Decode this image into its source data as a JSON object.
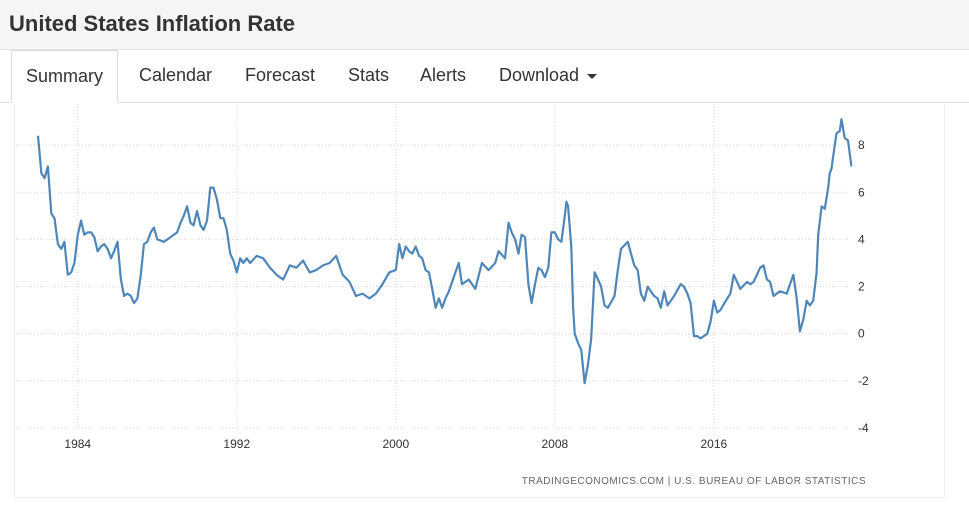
{
  "page_title": "United States Inflation Rate",
  "tabs": [
    {
      "label": "Summary",
      "active": true
    },
    {
      "label": "Calendar"
    },
    {
      "label": "Forecast"
    },
    {
      "label": "Stats"
    },
    {
      "label": "Alerts"
    },
    {
      "label": "Download"
    }
  ],
  "chart_data": {
    "type": "line",
    "title": "",
    "xlabel": "",
    "ylabel": "",
    "x_ticks": [
      "1984",
      "1992",
      "2000",
      "2008",
      "2016"
    ],
    "y_ticks": [
      "-4",
      "-2",
      "0",
      "2",
      "4",
      "6",
      "8"
    ],
    "xlim": [
      1982.0,
      2023.0
    ],
    "ylim": [
      -4,
      10
    ],
    "grid": true,
    "line_color": "#4f86b8",
    "source": "TRADINGECONOMICS.COM | U.S. BUREAU OF LABOR STATISTICS",
    "series": [
      {
        "name": "Inflation Rate",
        "points": [
          [
            1982.0,
            8.4
          ],
          [
            1982.17,
            6.8
          ],
          [
            1982.33,
            6.6
          ],
          [
            1982.5,
            7.1
          ],
          [
            1982.67,
            5.1
          ],
          [
            1982.83,
            4.9
          ],
          [
            1983.0,
            3.8
          ],
          [
            1983.17,
            3.6
          ],
          [
            1983.33,
            3.9
          ],
          [
            1983.5,
            2.5
          ],
          [
            1983.67,
            2.6
          ],
          [
            1983.83,
            3.0
          ],
          [
            1984.0,
            4.2
          ],
          [
            1984.17,
            4.8
          ],
          [
            1984.33,
            4.2
          ],
          [
            1984.5,
            4.3
          ],
          [
            1984.67,
            4.3
          ],
          [
            1984.83,
            4.1
          ],
          [
            1985.0,
            3.5
          ],
          [
            1985.17,
            3.7
          ],
          [
            1985.33,
            3.8
          ],
          [
            1985.5,
            3.6
          ],
          [
            1985.67,
            3.2
          ],
          [
            1985.83,
            3.5
          ],
          [
            1986.0,
            3.9
          ],
          [
            1986.17,
            2.3
          ],
          [
            1986.33,
            1.6
          ],
          [
            1986.5,
            1.7
          ],
          [
            1986.67,
            1.6
          ],
          [
            1986.83,
            1.3
          ],
          [
            1987.0,
            1.5
          ],
          [
            1987.17,
            2.5
          ],
          [
            1987.33,
            3.8
          ],
          [
            1987.5,
            3.9
          ],
          [
            1987.67,
            4.3
          ],
          [
            1987.83,
            4.5
          ],
          [
            1988.0,
            4.0
          ],
          [
            1988.33,
            3.9
          ],
          [
            1988.67,
            4.1
          ],
          [
            1989.0,
            4.3
          ],
          [
            1989.17,
            4.7
          ],
          [
            1989.33,
            5.0
          ],
          [
            1989.5,
            5.4
          ],
          [
            1989.67,
            4.7
          ],
          [
            1989.83,
            4.6
          ],
          [
            1990.0,
            5.2
          ],
          [
            1990.17,
            4.6
          ],
          [
            1990.33,
            4.4
          ],
          [
            1990.5,
            4.8
          ],
          [
            1990.67,
            6.2
          ],
          [
            1990.83,
            6.2
          ],
          [
            1991.0,
            5.7
          ],
          [
            1991.17,
            4.9
          ],
          [
            1991.33,
            4.9
          ],
          [
            1991.5,
            4.4
          ],
          [
            1991.67,
            3.4
          ],
          [
            1991.83,
            3.1
          ],
          [
            1992.0,
            2.6
          ],
          [
            1992.17,
            3.2
          ],
          [
            1992.33,
            3.0
          ],
          [
            1992.5,
            3.2
          ],
          [
            1992.67,
            3.0
          ],
          [
            1993.0,
            3.3
          ],
          [
            1993.33,
            3.2
          ],
          [
            1993.67,
            2.8
          ],
          [
            1994.0,
            2.5
          ],
          [
            1994.33,
            2.3
          ],
          [
            1994.67,
            2.9
          ],
          [
            1995.0,
            2.8
          ],
          [
            1995.33,
            3.1
          ],
          [
            1995.67,
            2.6
          ],
          [
            1996.0,
            2.7
          ],
          [
            1996.33,
            2.9
          ],
          [
            1996.67,
            3.0
          ],
          [
            1997.0,
            3.3
          ],
          [
            1997.33,
            2.5
          ],
          [
            1997.67,
            2.2
          ],
          [
            1998.0,
            1.6
          ],
          [
            1998.33,
            1.7
          ],
          [
            1998.67,
            1.5
          ],
          [
            1999.0,
            1.7
          ],
          [
            1999.33,
            2.1
          ],
          [
            1999.67,
            2.6
          ],
          [
            2000.0,
            2.7
          ],
          [
            2000.17,
            3.8
          ],
          [
            2000.33,
            3.2
          ],
          [
            2000.5,
            3.7
          ],
          [
            2000.67,
            3.5
          ],
          [
            2000.83,
            3.4
          ],
          [
            2001.0,
            3.7
          ],
          [
            2001.17,
            3.3
          ],
          [
            2001.33,
            3.2
          ],
          [
            2001.5,
            2.7
          ],
          [
            2001.67,
            2.6
          ],
          [
            2001.83,
            1.9
          ],
          [
            2002.0,
            1.1
          ],
          [
            2002.17,
            1.5
          ],
          [
            2002.33,
            1.1
          ],
          [
            2002.5,
            1.5
          ],
          [
            2002.67,
            1.8
          ],
          [
            2002.83,
            2.2
          ],
          [
            2003.0,
            2.6
          ],
          [
            2003.17,
            3.0
          ],
          [
            2003.33,
            2.1
          ],
          [
            2003.67,
            2.3
          ],
          [
            2004.0,
            1.9
          ],
          [
            2004.33,
            3.0
          ],
          [
            2004.67,
            2.7
          ],
          [
            2005.0,
            3.0
          ],
          [
            2005.17,
            3.5
          ],
          [
            2005.5,
            3.2
          ],
          [
            2005.67,
            4.7
          ],
          [
            2005.83,
            4.3
          ],
          [
            2006.0,
            4.0
          ],
          [
            2006.17,
            3.4
          ],
          [
            2006.33,
            4.2
          ],
          [
            2006.5,
            4.1
          ],
          [
            2006.67,
            2.1
          ],
          [
            2006.83,
            1.3
          ],
          [
            2007.0,
            2.1
          ],
          [
            2007.17,
            2.8
          ],
          [
            2007.33,
            2.7
          ],
          [
            2007.5,
            2.4
          ],
          [
            2007.67,
            2.8
          ],
          [
            2007.83,
            4.3
          ],
          [
            2008.0,
            4.3
          ],
          [
            2008.17,
            4.0
          ],
          [
            2008.33,
            3.9
          ],
          [
            2008.5,
            5.0
          ],
          [
            2008.58,
            5.6
          ],
          [
            2008.67,
            5.4
          ],
          [
            2008.83,
            3.7
          ],
          [
            2008.92,
            1.1
          ],
          [
            2009.0,
            0.0
          ],
          [
            2009.17,
            -0.4
          ],
          [
            2009.33,
            -0.7
          ],
          [
            2009.5,
            -2.1
          ],
          [
            2009.67,
            -1.3
          ],
          [
            2009.83,
            -0.2
          ],
          [
            2010.0,
            2.6
          ],
          [
            2010.17,
            2.3
          ],
          [
            2010.33,
            2.0
          ],
          [
            2010.5,
            1.2
          ],
          [
            2010.67,
            1.1
          ],
          [
            2011.0,
            1.6
          ],
          [
            2011.17,
            2.7
          ],
          [
            2011.33,
            3.6
          ],
          [
            2011.67,
            3.9
          ],
          [
            2011.83,
            3.4
          ],
          [
            2012.0,
            2.9
          ],
          [
            2012.17,
            2.7
          ],
          [
            2012.33,
            1.7
          ],
          [
            2012.5,
            1.4
          ],
          [
            2012.67,
            2.0
          ],
          [
            2012.83,
            1.8
          ],
          [
            2013.0,
            1.6
          ],
          [
            2013.17,
            1.5
          ],
          [
            2013.33,
            1.1
          ],
          [
            2013.5,
            1.8
          ],
          [
            2013.67,
            1.2
          ],
          [
            2014.0,
            1.6
          ],
          [
            2014.33,
            2.1
          ],
          [
            2014.5,
            2.0
          ],
          [
            2014.67,
            1.7
          ],
          [
            2014.83,
            1.3
          ],
          [
            2015.0,
            -0.1
          ],
          [
            2015.17,
            -0.1
          ],
          [
            2015.33,
            -0.2
          ],
          [
            2015.67,
            0.0
          ],
          [
            2015.83,
            0.5
          ],
          [
            2016.0,
            1.4
          ],
          [
            2016.17,
            0.9
          ],
          [
            2016.33,
            1.0
          ],
          [
            2016.67,
            1.5
          ],
          [
            2016.83,
            1.7
          ],
          [
            2017.0,
            2.5
          ],
          [
            2017.17,
            2.2
          ],
          [
            2017.33,
            1.9
          ],
          [
            2017.67,
            2.2
          ],
          [
            2017.83,
            2.1
          ],
          [
            2018.0,
            2.2
          ],
          [
            2018.33,
            2.8
          ],
          [
            2018.5,
            2.9
          ],
          [
            2018.67,
            2.3
          ],
          [
            2018.83,
            2.2
          ],
          [
            2019.0,
            1.6
          ],
          [
            2019.33,
            1.8
          ],
          [
            2019.67,
            1.7
          ],
          [
            2019.83,
            2.1
          ],
          [
            2020.0,
            2.5
          ],
          [
            2020.17,
            1.5
          ],
          [
            2020.33,
            0.1
          ],
          [
            2020.5,
            0.6
          ],
          [
            2020.67,
            1.4
          ],
          [
            2020.83,
            1.2
          ],
          [
            2021.0,
            1.4
          ],
          [
            2021.17,
            2.6
          ],
          [
            2021.25,
            4.2
          ],
          [
            2021.42,
            5.4
          ],
          [
            2021.58,
            5.3
          ],
          [
            2021.75,
            6.2
          ],
          [
            2021.83,
            6.8
          ],
          [
            2021.92,
            7.0
          ],
          [
            2022.0,
            7.5
          ],
          [
            2022.17,
            8.5
          ],
          [
            2022.33,
            8.6
          ],
          [
            2022.42,
            9.1
          ],
          [
            2022.58,
            8.3
          ],
          [
            2022.75,
            8.2
          ],
          [
            2022.92,
            7.1
          ]
        ]
      }
    ]
  }
}
